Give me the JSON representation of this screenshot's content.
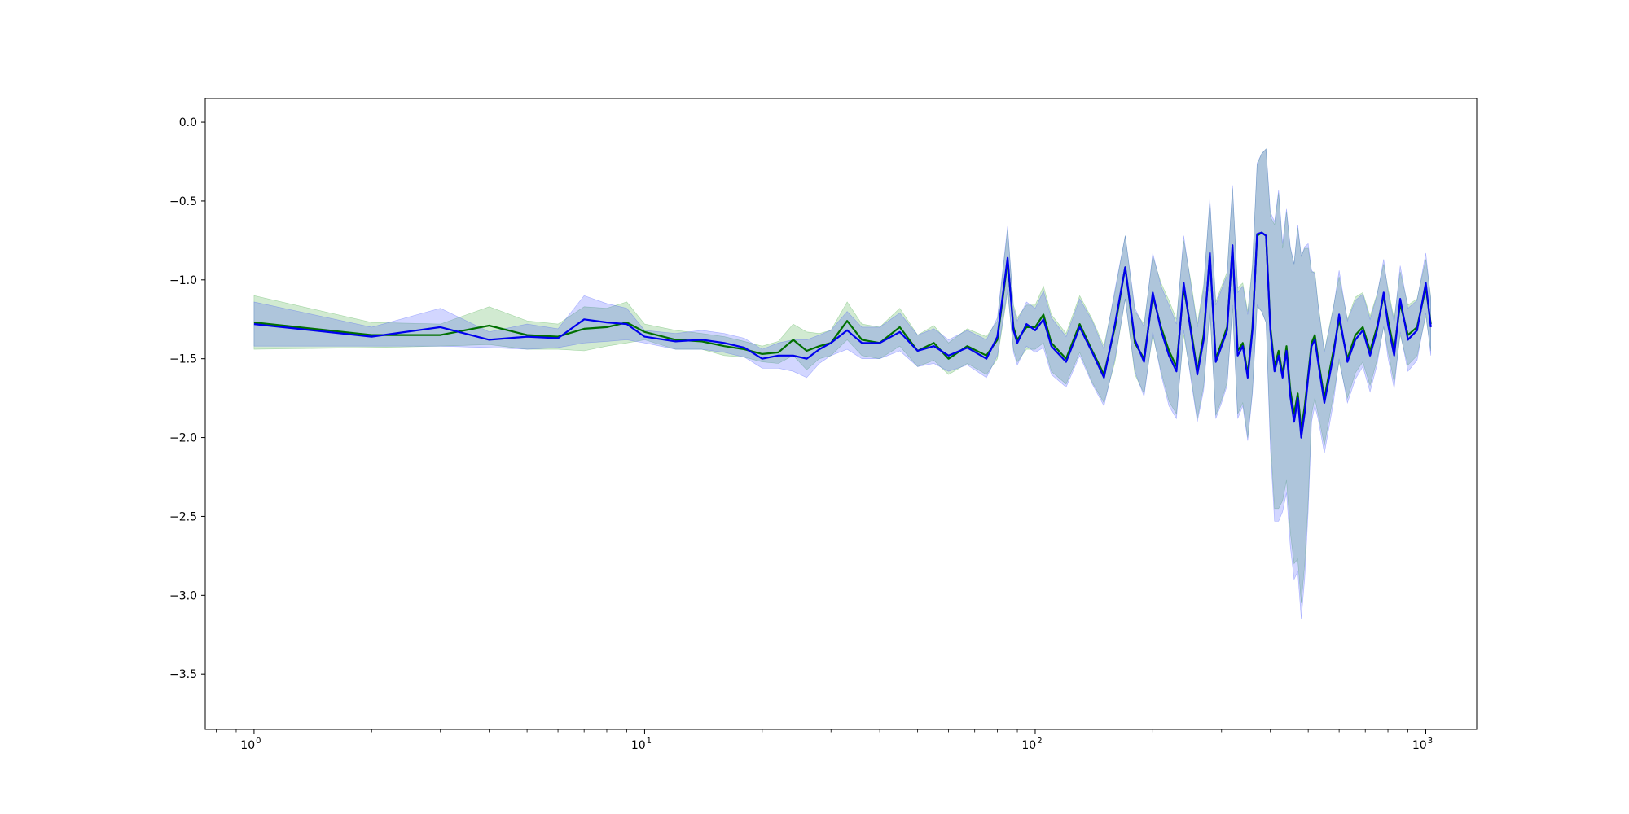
{
  "chart_data": {
    "type": "line",
    "title": "",
    "xlabel": "",
    "ylabel": "",
    "xscale": "log",
    "xlim": [
      0.75,
      1350
    ],
    "ylim": [
      -3.85,
      0.15
    ],
    "grid": false,
    "legend": "none",
    "y_ticks": [
      {
        "value": 0.0,
        "label": "0.0"
      },
      {
        "value": -0.5,
        "label": "−0.5"
      },
      {
        "value": -1.0,
        "label": "−1.0"
      },
      {
        "value": -1.5,
        "label": "−1.5"
      },
      {
        "value": -2.0,
        "label": "−2.0"
      },
      {
        "value": -2.5,
        "label": "−2.5"
      },
      {
        "value": -3.0,
        "label": "−3.0"
      },
      {
        "value": -3.5,
        "label": "−3.5"
      }
    ],
    "x_ticks": [
      {
        "value": 1,
        "base": "10",
        "exp": "0"
      },
      {
        "value": 10,
        "base": "10",
        "exp": "1"
      },
      {
        "value": 100,
        "base": "10",
        "exp": "2"
      },
      {
        "value": 1000,
        "base": "10",
        "exp": "3"
      }
    ],
    "series": [
      {
        "color": "#007000",
        "band_color": "#2ca02c",
        "band_opacity": 0.22,
        "x": [
          1,
          2,
          3,
          4,
          5,
          6,
          7,
          8,
          9,
          10,
          12,
          14,
          16,
          18,
          20,
          22,
          24,
          26,
          28,
          30,
          33,
          36,
          40,
          45,
          50,
          55,
          60,
          67,
          75,
          80,
          85,
          88,
          90,
          95,
          100,
          105,
          110,
          120,
          130,
          140,
          150,
          160,
          170,
          180,
          190,
          200,
          210,
          220,
          230,
          240,
          250,
          260,
          270,
          280,
          290,
          300,
          310,
          320,
          330,
          340,
          350,
          360,
          370,
          380,
          390,
          400,
          410,
          420,
          430,
          440,
          450,
          460,
          470,
          480,
          490,
          500,
          510,
          520,
          530,
          550,
          580,
          600,
          630,
          660,
          690,
          720,
          750,
          780,
          800,
          830,
          860,
          900,
          950,
          1000,
          1030
        ],
        "y": [
          -1.27,
          -1.35,
          -1.35,
          -1.29,
          -1.35,
          -1.36,
          -1.31,
          -1.3,
          -1.27,
          -1.33,
          -1.38,
          -1.39,
          -1.42,
          -1.44,
          -1.47,
          -1.46,
          -1.38,
          -1.45,
          -1.42,
          -1.4,
          -1.26,
          -1.38,
          -1.4,
          -1.3,
          -1.45,
          -1.4,
          -1.5,
          -1.42,
          -1.48,
          -1.38,
          -0.88,
          -1.3,
          -1.38,
          -1.3,
          -1.3,
          -1.22,
          -1.4,
          -1.5,
          -1.28,
          -1.45,
          -1.6,
          -1.3,
          -0.92,
          -1.4,
          -1.5,
          -1.1,
          -1.3,
          -1.45,
          -1.55,
          -1.05,
          -1.3,
          -1.58,
          -1.35,
          -0.85,
          -1.5,
          -1.4,
          -1.3,
          -0.8,
          -1.45,
          -1.4,
          -1.6,
          -1.3,
          -0.72,
          -0.7,
          -0.72,
          -1.3,
          -1.55,
          -1.45,
          -1.6,
          -1.42,
          -1.7,
          -1.85,
          -1.72,
          -1.95,
          -1.8,
          -1.6,
          -1.4,
          -1.35,
          -1.5,
          -1.75,
          -1.45,
          -1.25,
          -1.5,
          -1.35,
          -1.3,
          -1.45,
          -1.3,
          -1.1,
          -1.25,
          -1.45,
          -1.15,
          -1.35,
          -1.3,
          -1.05,
          -1.28
        ],
        "err": [
          0.17,
          0.08,
          0.07,
          0.12,
          0.09,
          0.08,
          0.14,
          0.12,
          0.13,
          0.05,
          0.06,
          0.05,
          0.06,
          0.05,
          0.05,
          0.07,
          0.1,
          0.12,
          0.08,
          0.08,
          0.12,
          0.1,
          0.1,
          0.12,
          0.1,
          0.11,
          0.1,
          0.11,
          0.12,
          0.12,
          0.2,
          0.14,
          0.14,
          0.14,
          0.14,
          0.18,
          0.18,
          0.16,
          0.18,
          0.2,
          0.18,
          0.22,
          0.2,
          0.2,
          0.22,
          0.25,
          0.28,
          0.32,
          0.3,
          0.3,
          0.3,
          0.3,
          0.32,
          0.35,
          0.36,
          0.36,
          0.35,
          0.38,
          0.4,
          0.38,
          0.4,
          0.4,
          0.45,
          0.5,
          0.55,
          0.7,
          0.9,
          1.0,
          0.8,
          0.85,
          0.9,
          0.95,
          1.05,
          1.1,
          1.0,
          0.8,
          0.45,
          0.4,
          0.35,
          0.3,
          0.28,
          0.27,
          0.25,
          0.24,
          0.22,
          0.22,
          0.21,
          0.2,
          0.2,
          0.2,
          0.2,
          0.19,
          0.18,
          0.18,
          0.17
        ]
      },
      {
        "color": "#0000ee",
        "band_color": "#3344ff",
        "band_opacity": 0.22,
        "x": [
          1,
          2,
          3,
          4,
          5,
          6,
          7,
          8,
          9,
          10,
          12,
          14,
          16,
          18,
          20,
          22,
          24,
          26,
          28,
          30,
          33,
          36,
          40,
          45,
          50,
          55,
          60,
          67,
          75,
          80,
          85,
          88,
          90,
          95,
          100,
          105,
          110,
          120,
          130,
          140,
          150,
          160,
          170,
          180,
          190,
          200,
          210,
          220,
          230,
          240,
          250,
          260,
          270,
          280,
          290,
          300,
          310,
          320,
          330,
          340,
          350,
          360,
          370,
          380,
          390,
          400,
          410,
          420,
          430,
          440,
          450,
          460,
          470,
          480,
          490,
          500,
          510,
          520,
          530,
          550,
          580,
          600,
          630,
          660,
          690,
          720,
          750,
          780,
          800,
          830,
          860,
          900,
          950,
          1000,
          1030
        ],
        "y": [
          -1.28,
          -1.36,
          -1.3,
          -1.38,
          -1.36,
          -1.37,
          -1.25,
          -1.27,
          -1.28,
          -1.36,
          -1.39,
          -1.38,
          -1.4,
          -1.43,
          -1.5,
          -1.48,
          -1.48,
          -1.5,
          -1.44,
          -1.4,
          -1.32,
          -1.4,
          -1.4,
          -1.33,
          -1.45,
          -1.42,
          -1.48,
          -1.43,
          -1.5,
          -1.36,
          -0.86,
          -1.32,
          -1.4,
          -1.28,
          -1.32,
          -1.25,
          -1.42,
          -1.52,
          -1.3,
          -1.46,
          -1.62,
          -1.28,
          -0.92,
          -1.38,
          -1.52,
          -1.08,
          -1.32,
          -1.48,
          -1.58,
          -1.02,
          -1.32,
          -1.6,
          -1.38,
          -0.83,
          -1.52,
          -1.42,
          -1.32,
          -0.78,
          -1.48,
          -1.42,
          -1.62,
          -1.32,
          -0.71,
          -0.7,
          -0.72,
          -1.32,
          -1.58,
          -1.48,
          -1.62,
          -1.45,
          -1.74,
          -1.9,
          -1.75,
          -2.0,
          -1.84,
          -1.62,
          -1.42,
          -1.38,
          -1.52,
          -1.78,
          -1.48,
          -1.22,
          -1.52,
          -1.38,
          -1.32,
          -1.48,
          -1.32,
          -1.08,
          -1.28,
          -1.48,
          -1.12,
          -1.38,
          -1.32,
          -1.02,
          -1.3
        ],
        "err": [
          0.14,
          0.06,
          0.12,
          0.05,
          0.08,
          0.06,
          0.15,
          0.12,
          0.1,
          0.04,
          0.05,
          0.06,
          0.06,
          0.06,
          0.06,
          0.08,
          0.1,
          0.12,
          0.09,
          0.08,
          0.12,
          0.1,
          0.1,
          0.12,
          0.1,
          0.11,
          0.1,
          0.11,
          0.12,
          0.12,
          0.2,
          0.14,
          0.14,
          0.14,
          0.14,
          0.18,
          0.18,
          0.16,
          0.18,
          0.2,
          0.18,
          0.22,
          0.2,
          0.2,
          0.22,
          0.25,
          0.28,
          0.32,
          0.3,
          0.3,
          0.3,
          0.3,
          0.32,
          0.35,
          0.36,
          0.36,
          0.35,
          0.38,
          0.4,
          0.38,
          0.4,
          0.4,
          0.45,
          0.5,
          0.55,
          0.75,
          0.95,
          1.05,
          0.85,
          0.9,
          0.95,
          1.0,
          1.1,
          1.15,
          1.05,
          0.85,
          0.48,
          0.42,
          0.36,
          0.32,
          0.3,
          0.28,
          0.26,
          0.25,
          0.23,
          0.23,
          0.22,
          0.21,
          0.21,
          0.21,
          0.21,
          0.2,
          0.19,
          0.19,
          0.18
        ]
      }
    ]
  }
}
